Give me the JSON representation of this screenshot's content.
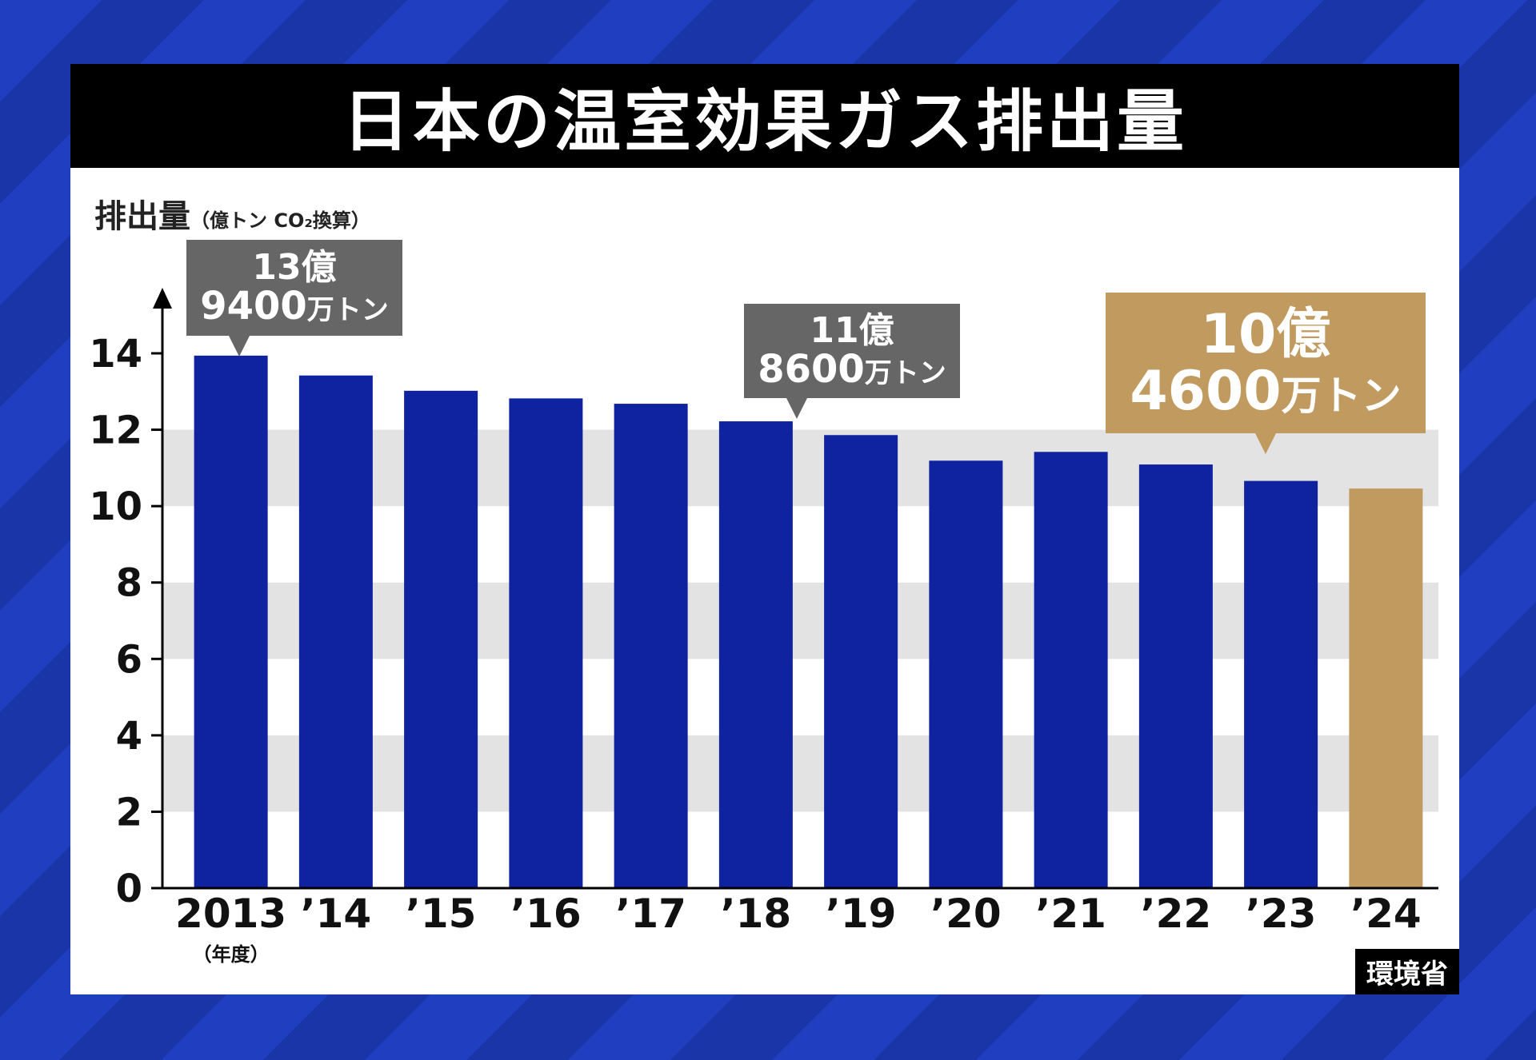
{
  "title": "日本の温室効果ガス排出量",
  "unit_label": {
    "main": "排出量",
    "sub": "（億トン CO₂換算）"
  },
  "source": "環境省",
  "year_unit": "（年度）",
  "colors": {
    "bar": "#0f22a0",
    "highlight": "#c09a5e",
    "callout_gray": "#666666",
    "band": "#e3e3e3",
    "title_bg": "#000000"
  },
  "callouts": [
    {
      "line1": "13億",
      "line2_num": "9400",
      "line2_unit": "万トン"
    },
    {
      "line1": "11億",
      "line2_num": "8600",
      "line2_unit": "万トン"
    },
    {
      "line1": "10億",
      "line2_num": "4600",
      "line2_unit": "万トン"
    }
  ],
  "chart_data": {
    "type": "bar",
    "categories": [
      "2013",
      "’14",
      "’15",
      "’16",
      "’17",
      "’18",
      "’19",
      "’20",
      "’21",
      "’22",
      "’23",
      "’24"
    ],
    "values": [
      13.94,
      13.42,
      13.02,
      12.82,
      12.68,
      12.22,
      11.86,
      11.19,
      11.42,
      11.09,
      10.66,
      10.46
    ],
    "highlight_index": 11,
    "ylim": [
      0,
      14
    ],
    "yticks": [
      0,
      2,
      4,
      6,
      8,
      10,
      12,
      14
    ],
    "ylabel": "排出量（億トン CO₂換算）",
    "xlabel": "（年度）",
    "title": "日本の温室効果ガス排出量",
    "grid": "alternating horizontal bands",
    "legend": "none"
  }
}
